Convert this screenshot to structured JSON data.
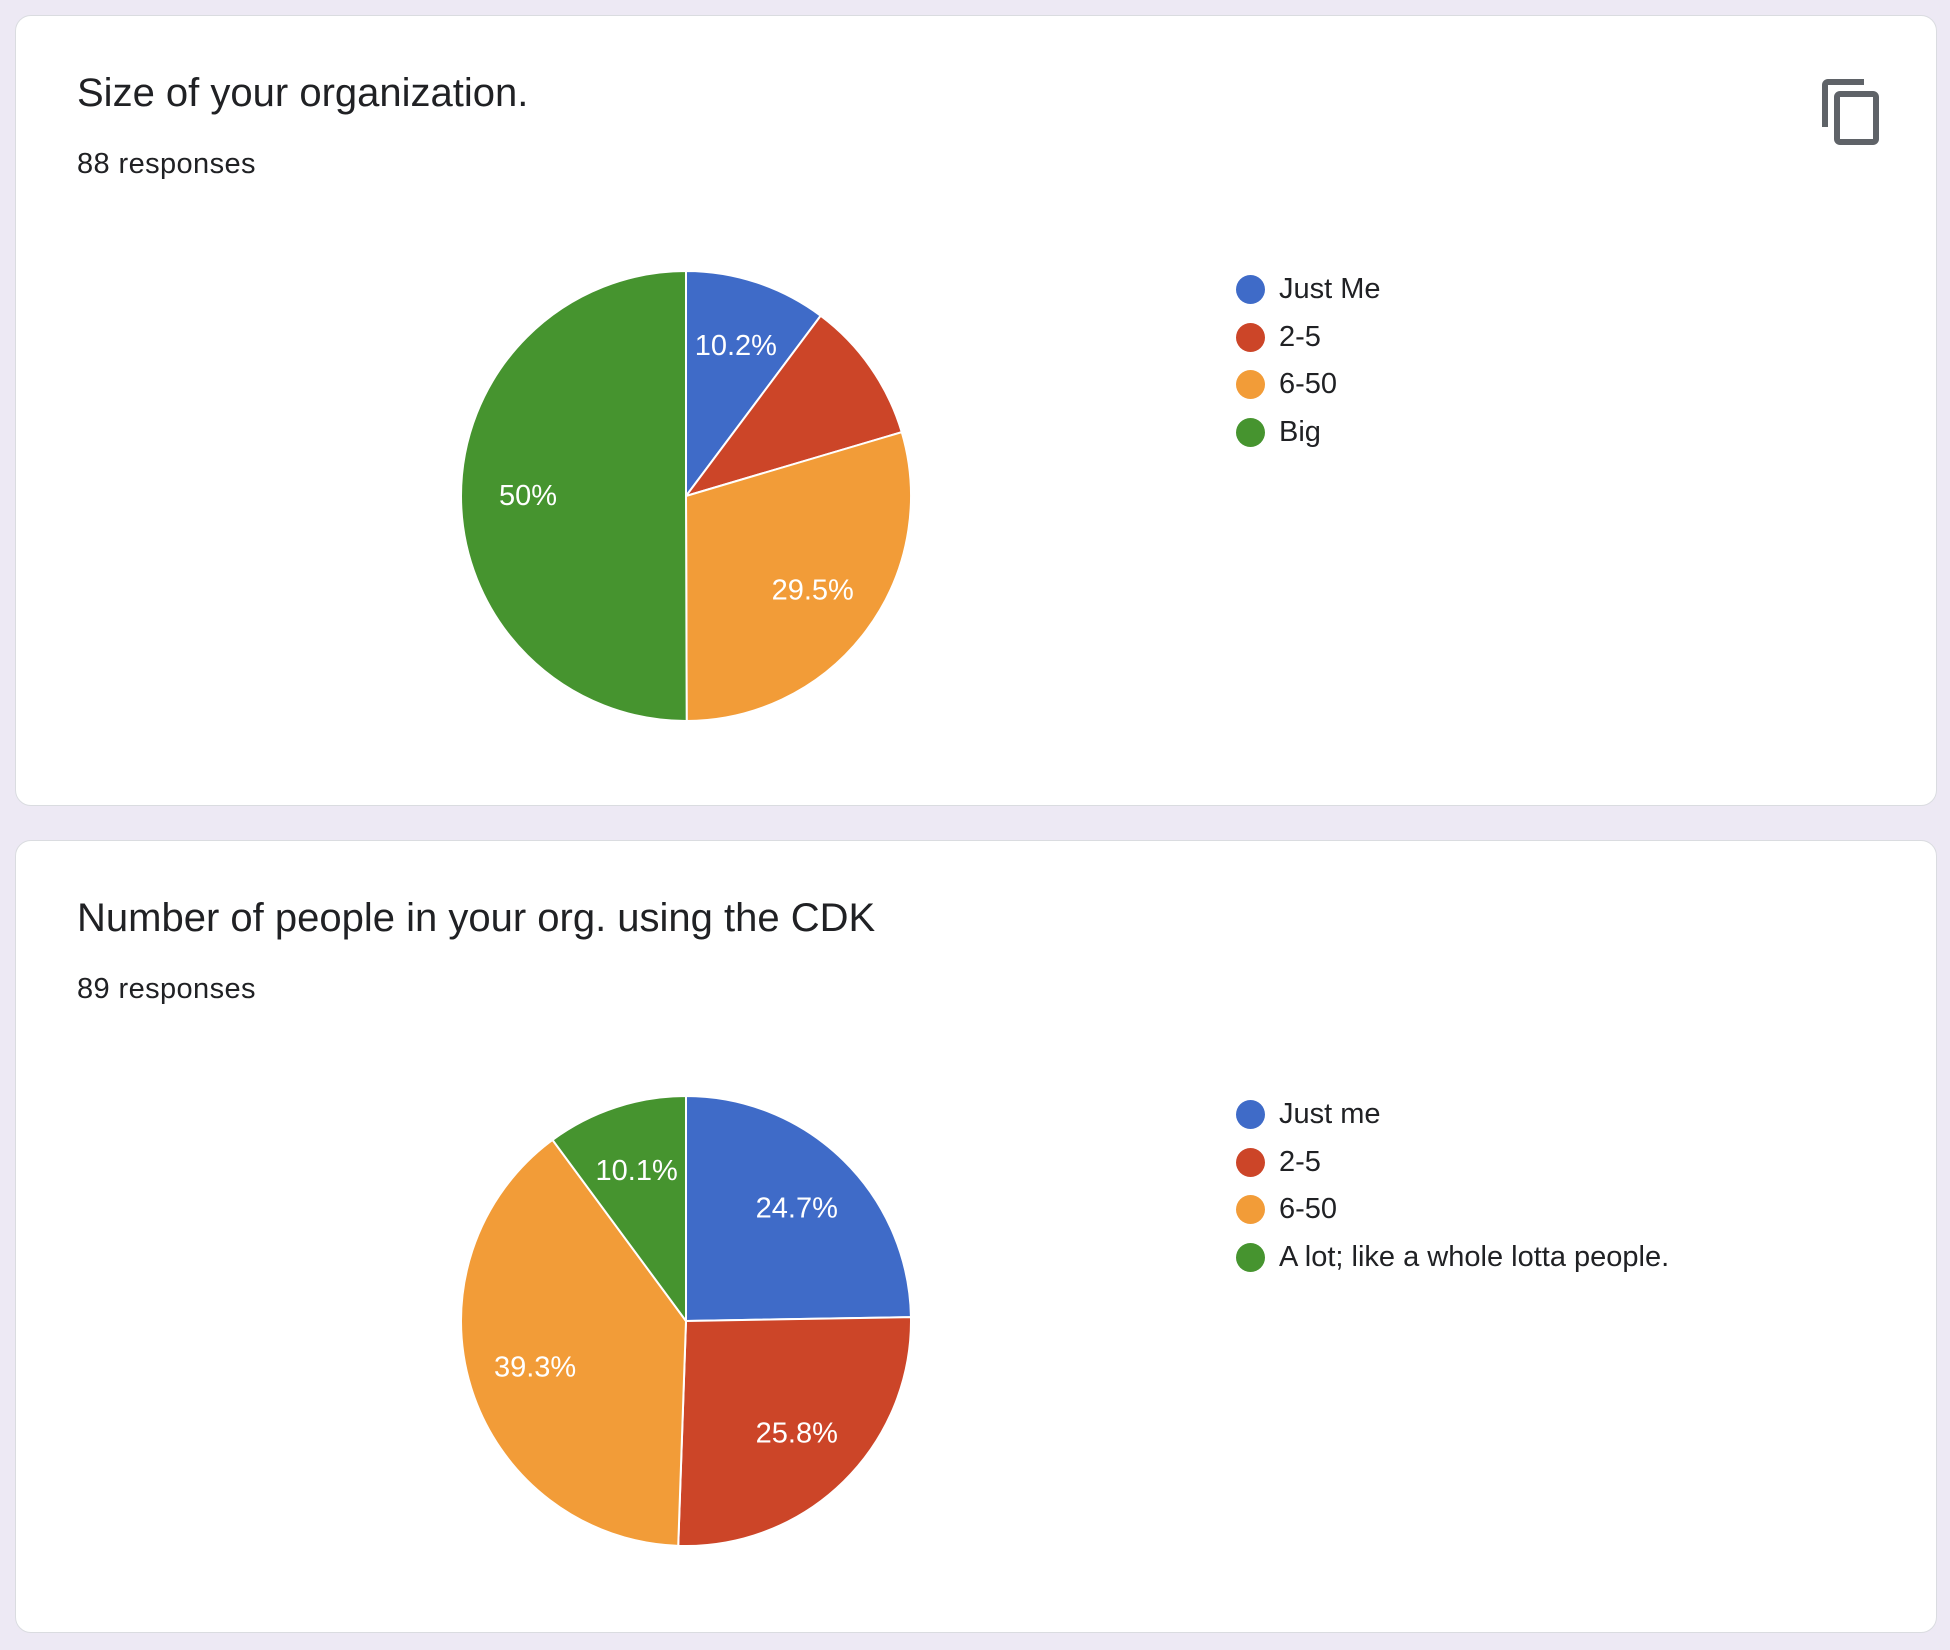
{
  "cards": [
    {
      "title": "Size of your organization.",
      "count_label": "88 responses",
      "has_copy_button": true
    },
    {
      "title": "Number of people in your org. using the CDK",
      "count_label": "89 responses",
      "has_copy_button": false
    }
  ],
  "icons": {
    "copy": "copy-icon"
  },
  "colors": {
    "background": "#ede9f4",
    "card": "#ffffff"
  },
  "chart_data": [
    {
      "type": "pie",
      "title": "Size of your organization.",
      "start_angle_deg": 90,
      "direction": "clockwise",
      "slices": [
        {
          "label": "Just Me",
          "value": 10.2,
          "color": "#3f6bc8",
          "data_label": "10.2%"
        },
        {
          "label": "2-5",
          "value": 10.2,
          "color": "#cc4528",
          "data_label": ""
        },
        {
          "label": "6-50",
          "value": 29.5,
          "color": "#f29c38",
          "data_label": "29.5%"
        },
        {
          "label": "Big",
          "value": 50.0,
          "color": "#46942f",
          "data_label": "50%"
        }
      ]
    },
    {
      "type": "pie",
      "title": "Number of people in your org. using the CDK",
      "start_angle_deg": 90,
      "direction": "clockwise",
      "slices": [
        {
          "label": "Just me",
          "value": 24.7,
          "color": "#3f6bc8",
          "data_label": "24.7%"
        },
        {
          "label": "2-5",
          "value": 25.8,
          "color": "#cc4528",
          "data_label": "25.8%"
        },
        {
          "label": "6-50",
          "value": 39.3,
          "color": "#f29c38",
          "data_label": "39.3%"
        },
        {
          "label": "A lot; like a whole lotta people.",
          "value": 10.1,
          "color": "#46942f",
          "data_label": "10.1%"
        }
      ]
    }
  ]
}
